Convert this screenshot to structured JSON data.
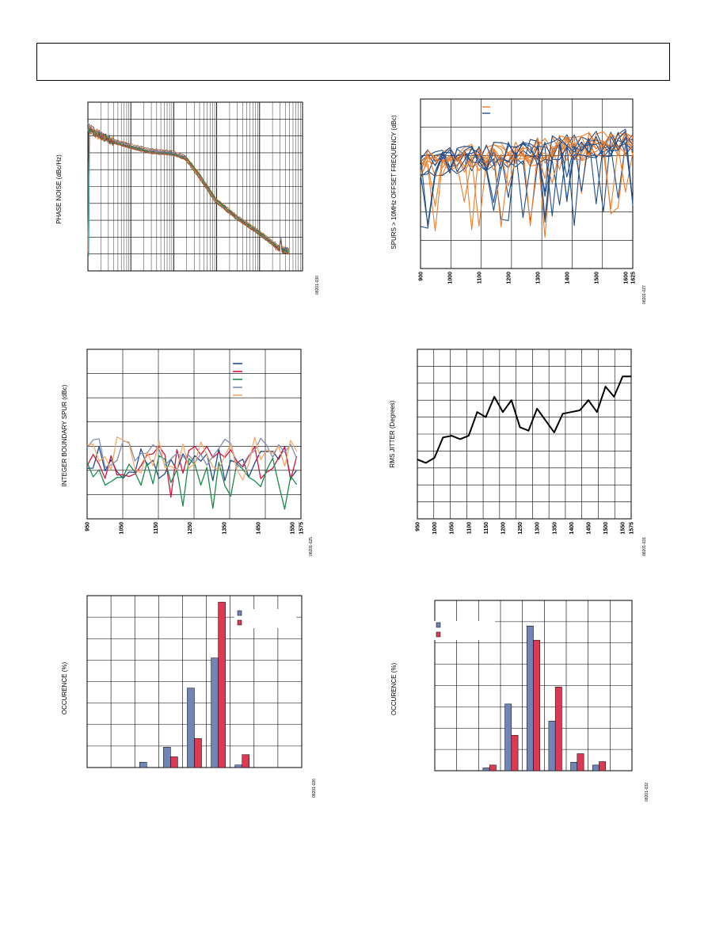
{
  "page": {
    "header": ""
  },
  "colors": {
    "blue": "#1f4e8c",
    "orange": "#f07c28",
    "red": "#d2143a",
    "green": "#1a8a4a",
    "steel": "#7f8fb8",
    "peach": "#f4a96a",
    "barBlue": "#6f85b5",
    "barRed": "#dc3a52",
    "grid": "#000000",
    "jitter": "#000000"
  },
  "chart_data": [
    {
      "id": "phase-noise",
      "type": "line",
      "title": "",
      "ylabel": "PHASE NOISE (dBc/Hz)",
      "xlabel": "",
      "x_scale": "log",
      "xlim": [
        1000,
        100000000
      ],
      "ylim": [
        -160,
        -60
      ],
      "figure_id": "08201-030",
      "grid": true,
      "series_shape": {
        "x": [
          1000,
          3000,
          10000,
          30000,
          100000,
          200000,
          400000,
          1000000,
          3000000,
          10000000,
          20000000,
          30000000,
          50000000
        ],
        "y": [
          -75,
          -82,
          -86,
          -89,
          -90,
          -93,
          -103,
          -118,
          -128,
          -137,
          -143,
          -147,
          -148
        ]
      }
    },
    {
      "id": "spurs-10mhz",
      "type": "line",
      "title": "",
      "ylabel": "SPURS > 10MHz OFFSET FREQUENCY (dBc)",
      "xlabel": "",
      "xlim": [
        900,
        1625
      ],
      "ylim": [
        -120,
        -60
      ],
      "x_ticks": [
        "900",
        "1000",
        "1100",
        "1200",
        "1300",
        "1400",
        "1500",
        "1600",
        "1625"
      ],
      "figure_id": "08201-027",
      "grid": true,
      "legend": {
        "placement": "top-right",
        "entries": [
          {
            "name": "",
            "color": "orange"
          },
          {
            "name": "",
            "color": "blue"
          }
        ]
      }
    },
    {
      "id": "integer-boundary",
      "type": "line",
      "title": "",
      "ylabel": "INTEGER BOUNDARY SPUR (dBc)",
      "xlabel": "",
      "xlim": [
        950,
        1575
      ],
      "ylim": [
        -100,
        -30
      ],
      "x_ticks": [
        "950",
        "1050",
        "1150",
        "1250",
        "1350",
        "1450",
        "1550",
        "1575"
      ],
      "figure_id": "08201-025",
      "grid": true,
      "legend": {
        "placement": "top-right",
        "entries": [
          {
            "name": "",
            "color": "blue"
          },
          {
            "name": "",
            "color": "red"
          },
          {
            "name": "",
            "color": "green"
          },
          {
            "name": "",
            "color": "steel"
          },
          {
            "name": "",
            "color": "peach"
          }
        ]
      }
    },
    {
      "id": "rms-jitter",
      "type": "line",
      "title": "",
      "ylabel": "RMS JITTER (Degrees)",
      "xlabel": "",
      "xlim": [
        950,
        1575
      ],
      "ylim": [
        0,
        1
      ],
      "x_ticks": [
        "950",
        "1000",
        "1050",
        "1100",
        "1150",
        "1200",
        "1250",
        "1300",
        "1350",
        "1400",
        "1450",
        "1500",
        "1550",
        "1575"
      ],
      "figure_id": "08201-031",
      "grid": true,
      "x": [
        950,
        975,
        1000,
        1025,
        1050,
        1075,
        1100,
        1125,
        1150,
        1175,
        1200,
        1225,
        1250,
        1275,
        1300,
        1325,
        1350,
        1375,
        1400,
        1425,
        1450,
        1475,
        1500,
        1525,
        1550,
        1575
      ],
      "y": [
        0.35,
        0.33,
        0.36,
        0.48,
        0.49,
        0.47,
        0.49,
        0.63,
        0.6,
        0.72,
        0.63,
        0.7,
        0.54,
        0.52,
        0.65,
        0.58,
        0.51,
        0.62,
        0.63,
        0.64,
        0.7,
        0.63,
        0.78,
        0.72,
        0.84,
        0.84
      ]
    },
    {
      "id": "occurrence-1",
      "type": "bar",
      "title": "",
      "ylabel": "OCCURENCE (%)",
      "xlabel": "",
      "ylim": [
        0,
        80
      ],
      "n_bins": 9,
      "figure_id": "08201-026",
      "legend": {
        "placement": "top-right",
        "entries": [
          {
            "name": "",
            "color": "barBlue"
          },
          {
            "name": "",
            "color": "barRed"
          }
        ]
      },
      "series": [
        {
          "name": "",
          "color": "barBlue",
          "values": [
            0,
            0,
            2.5,
            9.5,
            37,
            51,
            1.2,
            0,
            0
          ]
        },
        {
          "name": "",
          "color": "barRed",
          "values": [
            0,
            0,
            0,
            5,
            13.5,
            77,
            6,
            0,
            0
          ]
        }
      ]
    },
    {
      "id": "occurrence-2",
      "type": "bar",
      "title": "",
      "ylabel": "OCCURENCE (%)",
      "xlabel": "",
      "ylim": [
        0,
        60
      ],
      "n_bins": 9,
      "figure_id": "08201-032",
      "legend": {
        "placement": "top-left",
        "entries": [
          {
            "name": "",
            "color": "barBlue"
          },
          {
            "name": "",
            "color": "barRed"
          }
        ]
      },
      "series": [
        {
          "name": "",
          "color": "barBlue",
          "values": [
            0,
            0,
            1,
            23.5,
            51,
            17.5,
            3,
            2,
            0
          ]
        },
        {
          "name": "",
          "color": "barRed",
          "values": [
            0,
            0,
            2,
            12.5,
            46,
            29.5,
            6,
            3.2,
            0
          ]
        }
      ]
    }
  ]
}
